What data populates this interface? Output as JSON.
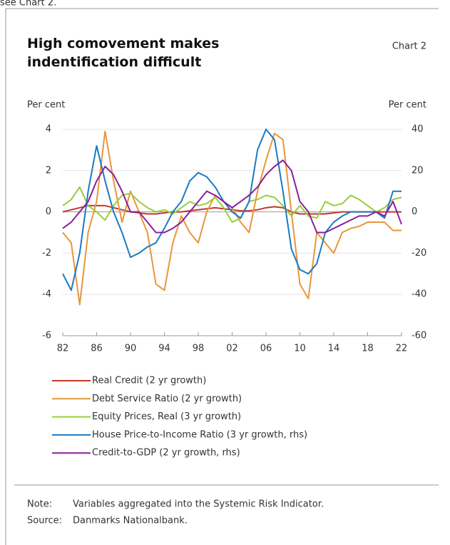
{
  "header": {
    "intro": "see Chart 2.",
    "title": "High comovement makes indentification difficult",
    "chart_label": "Chart 2"
  },
  "chart_data": {
    "type": "line",
    "ylabel": "Per cent",
    "y2label": "Per cent",
    "x": [
      1982,
      1983,
      1984,
      1985,
      1986,
      1987,
      1988,
      1989,
      1990,
      1991,
      1992,
      1993,
      1994,
      1995,
      1996,
      1997,
      1998,
      1999,
      2000,
      2001,
      2002,
      2003,
      2004,
      2005,
      2006,
      2007,
      2008,
      2009,
      2010,
      2011,
      2012,
      2013,
      2014,
      2015,
      2016,
      2017,
      2018,
      2019,
      2020,
      2021,
      2022
    ],
    "xlim": [
      1982,
      2022
    ],
    "xticks": [
      {
        "value": 1982,
        "label": "82"
      },
      {
        "value": 1986,
        "label": "86"
      },
      {
        "value": 1990,
        "label": "90"
      },
      {
        "value": 1994,
        "label": "94"
      },
      {
        "value": 1998,
        "label": "98"
      },
      {
        "value": 2002,
        "label": "02"
      },
      {
        "value": 2006,
        "label": "06"
      },
      {
        "value": 2010,
        "label": "10"
      },
      {
        "value": 2014,
        "label": "14"
      },
      {
        "value": 2018,
        "label": "18"
      },
      {
        "value": 2022,
        "label": "22"
      }
    ],
    "ylim": [
      -6,
      4
    ],
    "yticks": [
      -6,
      -4,
      -2,
      0,
      2,
      4
    ],
    "y2lim": [
      -60,
      40
    ],
    "y2ticks": [
      -60,
      -40,
      -20,
      0,
      20,
      40
    ],
    "grid": true,
    "series": [
      {
        "name": "Real Credit (2 yr growth)",
        "color": "#c0392b",
        "values": [
          0,
          0.1,
          0.2,
          0.3,
          0.3,
          0.3,
          0.2,
          0.1,
          0,
          -0.05,
          -0.1,
          -0.1,
          -0.05,
          0,
          0,
          0.05,
          0.1,
          0.15,
          0.2,
          0.15,
          0.1,
          0.05,
          0.05,
          0.1,
          0.2,
          0.25,
          0.2,
          0,
          -0.1,
          -0.1,
          -0.1,
          -0.1,
          -0.05,
          0,
          0,
          0,
          0,
          0,
          0,
          0,
          0
        ]
      },
      {
        "name": "Debt Service Ratio (2 yr growth)",
        "color": "#e8963a",
        "values": [
          -1,
          -1.5,
          -4.5,
          -1,
          0.5,
          3.9,
          1.5,
          -0.5,
          1,
          0,
          -1,
          -3.5,
          -3.8,
          -1.5,
          -0.2,
          -1,
          -1.5,
          0,
          0.8,
          0.5,
          0.2,
          -0.5,
          -1,
          1,
          2.5,
          3.8,
          3.5,
          0,
          -3.5,
          -4.2,
          -1,
          -1.5,
          -2,
          -1,
          -0.8,
          -0.7,
          -0.5,
          -0.5,
          -0.5,
          -0.9,
          -0.9
        ]
      },
      {
        "name": "Equity Prices, Real (3 yr growth)",
        "color": "#9acd3c",
        "values": [
          0.3,
          0.6,
          1.2,
          0.3,
          0,
          -0.4,
          0.3,
          0.8,
          0.9,
          0.5,
          0.2,
          0,
          0.1,
          -0.1,
          0.2,
          0.5,
          0.3,
          0.4,
          0.7,
          0.2,
          -0.5,
          -0.3,
          0.5,
          0.6,
          0.8,
          0.7,
          0.3,
          -0.2,
          0.3,
          -0.2,
          -0.3,
          0.5,
          0.3,
          0.4,
          0.8,
          0.6,
          0.3,
          0,
          0.2,
          0.6,
          0.7
        ]
      },
      {
        "name": "House Price-to-Income Ratio (3 yr growth, rhs)",
        "color": "#1a7ac4",
        "axis": "y2",
        "values": [
          -30,
          -38,
          -20,
          10,
          32,
          15,
          0,
          -10,
          -22,
          -20,
          -17,
          -15,
          -8,
          0,
          5,
          15,
          19,
          17,
          12,
          5,
          0,
          -3,
          5,
          30,
          40,
          35,
          10,
          -18,
          -28,
          -30,
          -25,
          -10,
          -5,
          -2,
          0,
          0,
          0,
          0,
          -3,
          10,
          10
        ]
      },
      {
        "name": "Credit-to-GDP (2 yr growth, rhs)",
        "color": "#8b1f9a",
        "axis": "y2",
        "values": [
          -8,
          -5,
          0,
          5,
          15,
          22,
          18,
          10,
          0,
          0,
          -5,
          -10,
          -10,
          -8,
          -5,
          0,
          5,
          10,
          8,
          5,
          2,
          5,
          8,
          12,
          18,
          22,
          25,
          20,
          5,
          0,
          -10,
          -10,
          -8,
          -6,
          -4,
          -2,
          -2,
          0,
          -2,
          5,
          -6
        ]
      }
    ]
  },
  "footer": {
    "note_label": "Note:",
    "note": "Variables aggregated into the Systemic Risk Indicator.",
    "source_label": "Source:",
    "source": "Danmarks Nationalbank."
  }
}
